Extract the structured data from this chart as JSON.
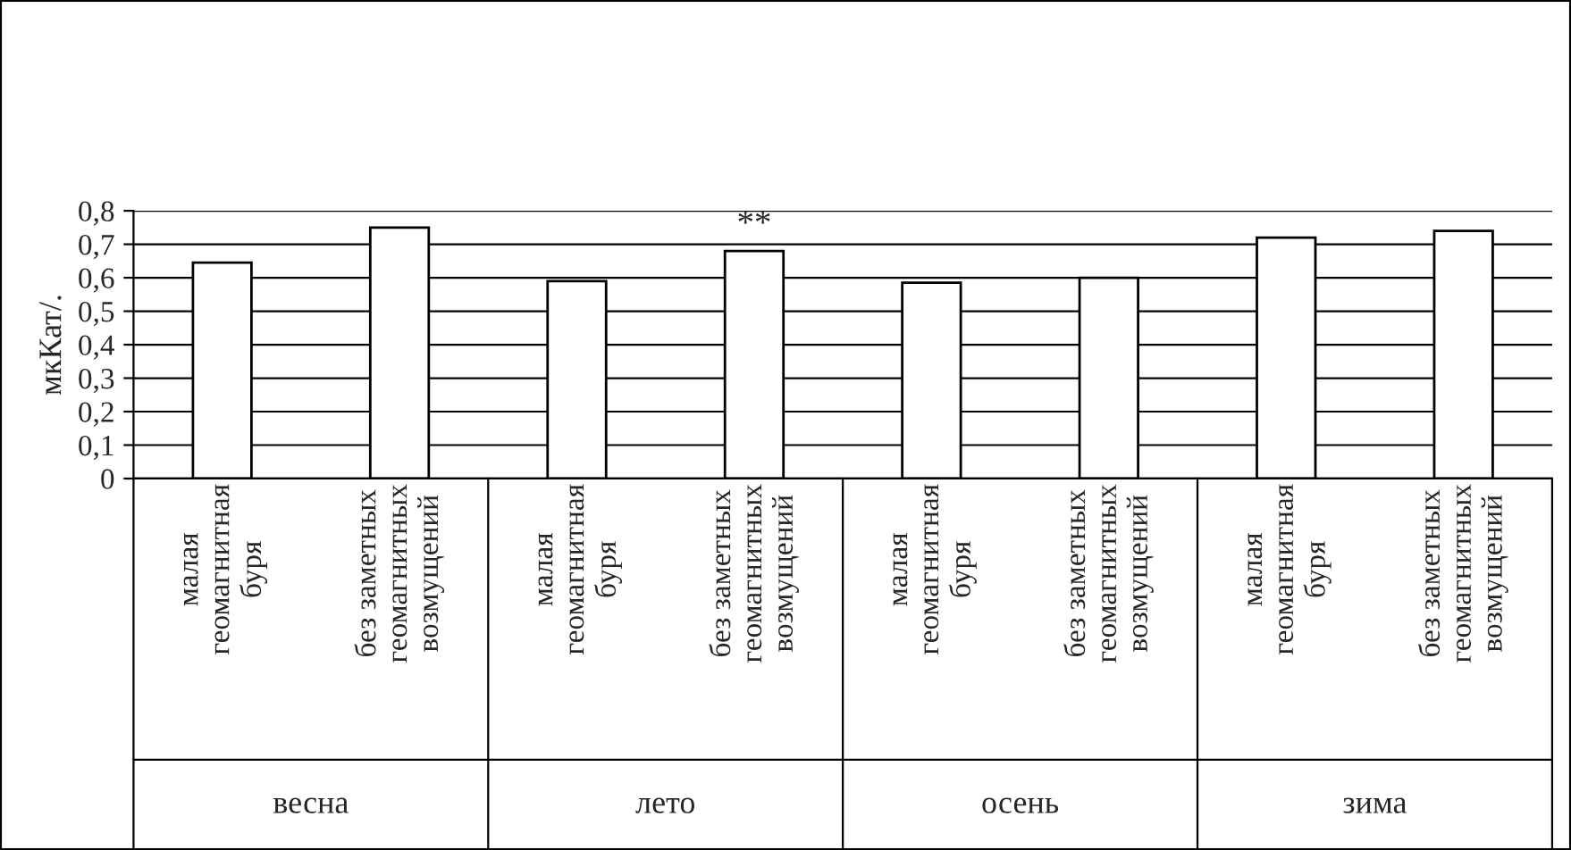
{
  "chart_data": {
    "type": "bar",
    "ylabel": "мкКат/.",
    "categories": [
      "малая\nгеомагнитная\nбуря",
      "без заметных\nгеомагнитных\nвозмущений",
      "малая\nгеомагнитная\nбуря",
      "без заметных\nгеомагнитных\nвозмущений",
      "малая\nгеомагнитная\nбуря",
      "без заметных\nгеомагнитных\nвозмущений",
      "малая\nгеомагнитная\nбуря",
      "без заметных\nгеомагнитных\nвозмущений"
    ],
    "values": [
      0.645,
      0.75,
      0.59,
      0.68,
      0.585,
      0.6,
      0.72,
      0.74
    ],
    "color": "#ffffff",
    "ylim": [
      0,
      0.8
    ],
    "yticks": [
      0,
      {
        "value": 0.1,
        "label": "0,1"
      },
      {
        "value": 0.2,
        "label": "0,2"
      },
      {
        "value": 0.3,
        "label": "0,3"
      },
      {
        "value": 0.4,
        "label": "0,4"
      },
      {
        "value": 0.5,
        "label": "0,5"
      },
      {
        "value": 0.6,
        "label": "0,6"
      },
      {
        "value": 0.7,
        "label": "0,7"
      },
      {
        "value": 0.8,
        "label": "0,8"
      }
    ],
    "grid": "y",
    "annotations": [
      {
        "text": "**",
        "y": 0.68
      },
      "весна",
      "лето",
      "осень",
      "зима"
    ]
  }
}
